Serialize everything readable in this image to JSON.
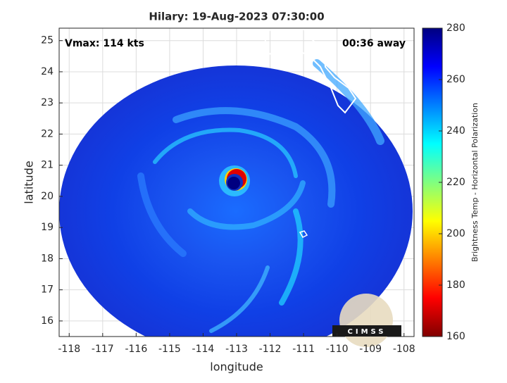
{
  "chart_data": {
    "type": "image",
    "title": "Hilary: 19-Aug-2023 07:30:00",
    "annotations": [
      "Vmax: 114 kts",
      "00:36 away"
    ],
    "x_label": "longitude",
    "y_label": "latitude",
    "xlim": [
      -118.3,
      -107.7
    ],
    "xticks": [
      -118,
      -117,
      -116,
      -115,
      -114,
      -113,
      -112,
      -111,
      -110,
      -109,
      -108
    ],
    "ylim": [
      15.5,
      25.4
    ],
    "yticks": [
      16,
      17,
      18,
      19,
      20,
      21,
      22,
      23,
      24,
      25
    ],
    "grid": true,
    "colorbar": {
      "label": "Brightness Temp - Horizontal Polarization",
      "lim": [
        160,
        280
      ],
      "ticks": [
        160,
        180,
        200,
        220,
        240,
        260,
        280
      ],
      "colormap": [
        "#800000",
        "#ff0000",
        "#ff8000",
        "#ffff00",
        "#80ff80",
        "#00ffff",
        "#0080ff",
        "#0000ff",
        "#000080"
      ]
    },
    "logo": "CIMSS"
  }
}
